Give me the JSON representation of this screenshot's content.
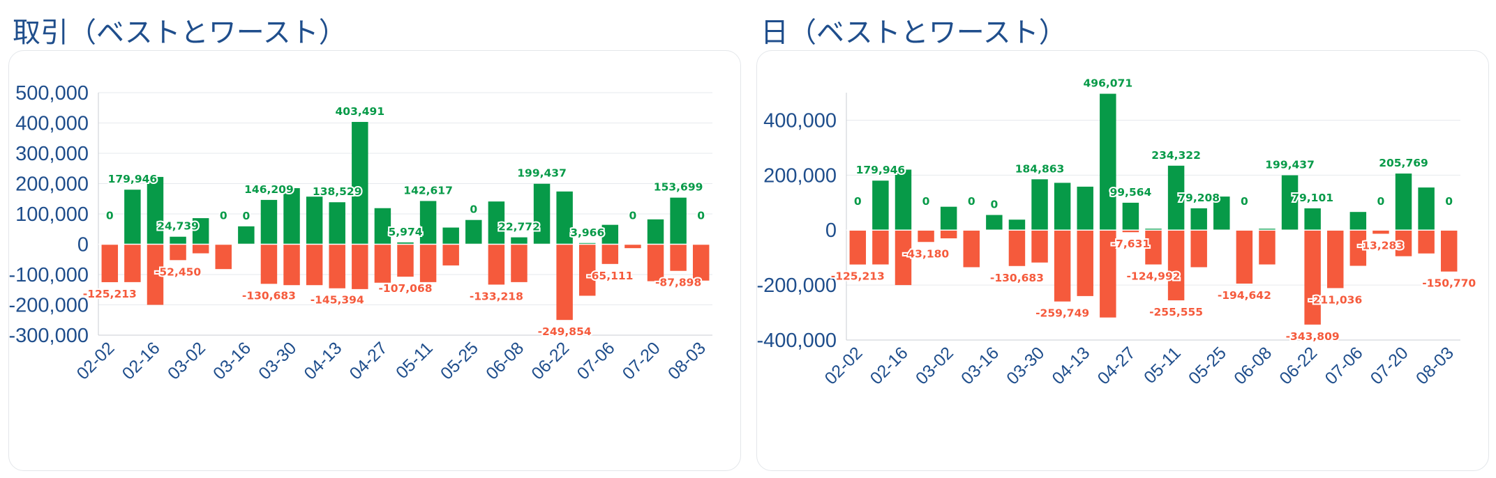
{
  "charts": [
    {
      "title": "取引（ベストとワースト）",
      "chart_data": {
        "type": "bar",
        "title": "取引（ベストとワースト）",
        "xlabel": "",
        "ylabel": "",
        "ylim": [
          -300000,
          500000
        ],
        "yticks": [
          500000,
          400000,
          300000,
          200000,
          100000,
          0,
          -100000,
          -200000,
          -300000
        ],
        "ytick_labels": [
          "500,000",
          "400,000",
          "300,000",
          "200,000",
          "100,000",
          "0",
          "-100,000",
          "-200,000",
          "-300,000"
        ],
        "xtick_labels": [
          "02-02",
          "02-16",
          "03-02",
          "03-16",
          "03-30",
          "04-13",
          "04-27",
          "05-11",
          "05-25",
          "06-08",
          "06-22",
          "07-06",
          "07-20",
          "08-03"
        ],
        "grid": true,
        "bar_count": 27,
        "series": [
          {
            "color": "#079a48",
            "values": [
              0,
              179946,
              222000,
              24739,
              86000,
              0,
              59000,
              146209,
              185000,
              157000,
              138529,
              403491,
              119000,
              5974,
              142617,
              55000,
              80000,
              141000,
              22772,
              199437,
              174000,
              3966,
              64000,
              0,
              82000,
              153699,
              0
            ]
          },
          {
            "color": "#f55a3c",
            "values": [
              -125213,
              -125000,
              -200000,
              -52450,
              -30000,
              -82000,
              0,
              -130683,
              -135000,
              -135000,
              -145394,
              -148000,
              -127000,
              -107068,
              -125000,
              -70000,
              0,
              -133218,
              -125000,
              0,
              -249854,
              -170000,
              -65111,
              -13000,
              -122000,
              -87898,
              -120000
            ]
          }
        ],
        "data_labels": [
          {
            "i": 0,
            "text": "0",
            "series": 0
          },
          {
            "i": 0,
            "text": "-125,213",
            "series": 1
          },
          {
            "i": 1,
            "text": "179,946",
            "series": 0
          },
          {
            "i": 3,
            "text": "24,739",
            "series": 0
          },
          {
            "i": 3,
            "text": "-52,450",
            "series": 1
          },
          {
            "i": 5,
            "text": "0",
            "series": 0
          },
          {
            "i": 6,
            "text": "0",
            "series": 0
          },
          {
            "i": 7,
            "text": "146,209",
            "series": 0
          },
          {
            "i": 7,
            "text": "-130,683",
            "series": 1
          },
          {
            "i": 10,
            "text": "138,529",
            "series": 0
          },
          {
            "i": 10,
            "text": "-145,394",
            "series": 1
          },
          {
            "i": 11,
            "text": "403,491",
            "series": 0
          },
          {
            "i": 13,
            "text": "5,974",
            "series": 0
          },
          {
            "i": 13,
            "text": "-107,068",
            "series": 1
          },
          {
            "i": 14,
            "text": "142,617",
            "series": 0
          },
          {
            "i": 16,
            "text": "0",
            "series": 0
          },
          {
            "i": 17,
            "text": "-133,218",
            "series": 1
          },
          {
            "i": 18,
            "text": "22,772",
            "series": 0
          },
          {
            "i": 19,
            "text": "199,437",
            "series": 0
          },
          {
            "i": 20,
            "text": "-249,854",
            "series": 1
          },
          {
            "i": 21,
            "text": "3,966",
            "series": 0
          },
          {
            "i": 22,
            "text": "-65,111",
            "series": 1
          },
          {
            "i": 23,
            "text": "0",
            "series": 0
          },
          {
            "i": 25,
            "text": "153,699",
            "series": 0
          },
          {
            "i": 25,
            "text": "-87,898",
            "series": 1
          },
          {
            "i": 26,
            "text": "0",
            "series": 0
          }
        ]
      }
    },
    {
      "title": "日（ベストとワースト）",
      "chart_data": {
        "type": "bar",
        "title": "日（ベストとワースト）",
        "xlabel": "",
        "ylabel": "",
        "ylim": [
          -400000,
          500000
        ],
        "yticks": [
          400000,
          200000,
          0,
          -200000,
          -400000
        ],
        "ytick_labels": [
          "400,000",
          "200,000",
          "0",
          "-200,000",
          "-400,000"
        ],
        "xtick_labels": [
          "02-02",
          "02-16",
          "03-02",
          "03-16",
          "03-30",
          "04-13",
          "04-27",
          "05-11",
          "05-25",
          "06-08",
          "06-22",
          "07-06",
          "07-20",
          "08-03"
        ],
        "grid": true,
        "bar_count": 27,
        "series": [
          {
            "color": "#079a48",
            "values": [
              0,
              179946,
              220000,
              0,
              85000,
              0,
              55000,
              38000,
              184863,
              172000,
              158000,
              496071,
              99564,
              5000,
              234322,
              79208,
              122000,
              0,
              5000,
              199437,
              79101,
              0,
              66000,
              0,
              205769,
              155000,
              0
            ]
          },
          {
            "color": "#f55a3c",
            "values": [
              -125213,
              -125000,
              -200000,
              -43180,
              -30000,
              -135000,
              0,
              -130683,
              -118000,
              -259749,
              -240000,
              -318000,
              -7631,
              -124992,
              -255555,
              -135000,
              0,
              -194642,
              -125000,
              0,
              -343809,
              -211036,
              -130000,
              -13283,
              -95000,
              -85000,
              -150770
            ]
          }
        ],
        "data_labels": [
          {
            "i": 0,
            "text": "0",
            "series": 0
          },
          {
            "i": 0,
            "text": "-125,213",
            "series": 1
          },
          {
            "i": 1,
            "text": "179,946",
            "series": 0
          },
          {
            "i": 3,
            "text": "0",
            "series": 0
          },
          {
            "i": 3,
            "text": "-43,180",
            "series": 1
          },
          {
            "i": 5,
            "text": "0",
            "series": 0
          },
          {
            "i": 6,
            "text": "0",
            "series": 0
          },
          {
            "i": 7,
            "text": "-130,683",
            "series": 1
          },
          {
            "i": 8,
            "text": "184,863",
            "series": 0
          },
          {
            "i": 9,
            "text": "-259,749",
            "series": 1
          },
          {
            "i": 11,
            "text": "496,071",
            "series": 0
          },
          {
            "i": 12,
            "text": "99,564",
            "series": 0
          },
          {
            "i": 12,
            "text": "-7,631",
            "series": 1
          },
          {
            "i": 13,
            "text": "-124,992",
            "series": 1
          },
          {
            "i": 14,
            "text": "234,322",
            "series": 0
          },
          {
            "i": 14,
            "text": "-255,555",
            "series": 1
          },
          {
            "i": 15,
            "text": "79,208",
            "series": 0
          },
          {
            "i": 17,
            "text": "0",
            "series": 0
          },
          {
            "i": 17,
            "text": "-194,642",
            "series": 1
          },
          {
            "i": 19,
            "text": "199,437",
            "series": 0
          },
          {
            "i": 20,
            "text": "79,101",
            "series": 0
          },
          {
            "i": 20,
            "text": "-343,809",
            "series": 1
          },
          {
            "i": 21,
            "text": "-211,036",
            "series": 1
          },
          {
            "i": 23,
            "text": "0",
            "series": 0
          },
          {
            "i": 23,
            "text": "-13,283",
            "series": 1
          },
          {
            "i": 24,
            "text": "205,769",
            "series": 0
          },
          {
            "i": 26,
            "text": "0",
            "series": 0
          },
          {
            "i": 26,
            "text": "-150,770",
            "series": 1
          }
        ]
      }
    }
  ]
}
